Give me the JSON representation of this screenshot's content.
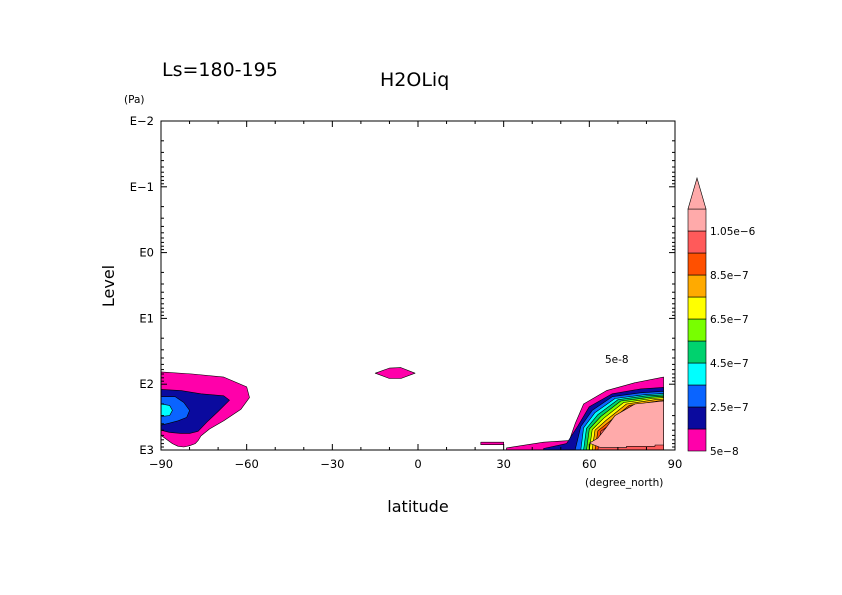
{
  "chart_data": {
    "type": "contour",
    "title": "H2OLiq",
    "subtitle": "Ls=180-195",
    "xlabel": "latitude",
    "xunit": "(degree_north)",
    "ylabel": "Level",
    "yunit": "(Pa)",
    "xlim": [
      -90,
      90
    ],
    "ylim": [
      1000,
      0.01
    ],
    "yscale": "log",
    "x_ticks": [
      -90,
      -60,
      -30,
      0,
      30,
      60,
      90
    ],
    "x_tick_labels": [
      "−90",
      "−60",
      "−30",
      "0",
      "30",
      "60",
      "90"
    ],
    "y_ticks": [
      0.01,
      0.1,
      1,
      10,
      100,
      1000
    ],
    "y_tick_labels": [
      "E−2",
      "E−1",
      "E0",
      "E1",
      "E2",
      "E3"
    ],
    "contour_label": "5e-8",
    "colorbar": {
      "levels": [
        5e-08,
        1.5e-07,
        2.5e-07,
        3.5e-07,
        4.5e-07,
        5.5e-07,
        6.5e-07,
        7.5e-07,
        8.5e-07,
        9.5e-07,
        1.05e-06
      ],
      "labels": [
        "5e−8",
        "2.5e−7",
        "4.5e−7",
        "6.5e−7",
        "8.5e−7",
        "1.05e−6"
      ],
      "colors": [
        "#ff00aa",
        "#0a0a9e",
        "#0a64ff",
        "#00ffff",
        "#00d26e",
        "#78ff00",
        "#ffff00",
        "#ffaa00",
        "#ff5000",
        "#ff5a5a",
        "#ffaaaa"
      ],
      "extend": "max"
    },
    "regions": [
      {
        "level_index": 0,
        "color_index": 0,
        "lat": [
          -90,
          -79,
          -68,
          -60,
          -59,
          -62,
          -68,
          -73,
          -76,
          -77,
          -78,
          -80,
          -82,
          -84,
          -86,
          -90
        ],
        "pressure": [
          65,
          70,
          78,
          110,
          160,
          240,
          360,
          480,
          610,
          720,
          800,
          860,
          900,
          880,
          800,
          600
        ]
      },
      {
        "level_index": 1,
        "color_index": 1,
        "lat": [
          -90,
          -83,
          -76,
          -68,
          -66,
          -70,
          -74,
          -77,
          -80,
          -83,
          -87,
          -90
        ],
        "pressure": [
          120,
          125,
          140,
          150,
          175,
          260,
          380,
          520,
          560,
          560,
          540,
          500
        ]
      },
      {
        "level_index": 2,
        "color_index": 2,
        "lat": [
          -90,
          -85,
          -82,
          -80,
          -81,
          -84,
          -87,
          -90
        ],
        "pressure": [
          155,
          155,
          190,
          250,
          320,
          360,
          390,
          420
        ]
      },
      {
        "level_index": 3,
        "color_index": 3,
        "lat": [
          -90,
          -87,
          -86,
          -87,
          -90
        ],
        "pressure": [
          200,
          210,
          250,
          300,
          310
        ]
      },
      {
        "level_index": 0,
        "color_index": 0,
        "lat": [
          -15,
          -10,
          -6,
          -1,
          -6,
          -10,
          -15
        ],
        "pressure": [
          68,
          57,
          56,
          68,
          82,
          82,
          68
        ]
      },
      {
        "level_index": 0,
        "color_index": 0,
        "lat": [
          22,
          30,
          30,
          22
        ],
        "pressure": [
          760,
          760,
          830,
          830
        ]
      },
      {
        "level_index": 0,
        "color_index": 0,
        "lat": [
          31,
          44,
          53,
          55,
          58,
          66,
          76,
          86,
          86,
          74,
          68,
          62,
          60,
          58,
          57,
          51,
          40,
          31
        ],
        "pressure": [
          930,
          760,
          720,
          400,
          200,
          125,
          95,
          78,
          1000,
          1000,
          1000,
          1000,
          1000,
          1000,
          1000,
          1000,
          1000,
          1000
        ]
      },
      {
        "level_index": 1,
        "color_index": 1,
        "lat": [
          44,
          52,
          56,
          60,
          68,
          78,
          86,
          86,
          70,
          54,
          44
        ],
        "pressure": [
          950,
          800,
          430,
          220,
          140,
          118,
          112,
          1000,
          1000,
          1000,
          1000
        ]
      },
      {
        "level_index": 2,
        "color_index": 2,
        "lat": [
          55,
          57,
          61,
          68,
          78,
          86,
          86,
          62,
          55
        ],
        "pressure": [
          1000,
          440,
          250,
          155,
          135,
          128,
          1000,
          1000,
          1000
        ]
      },
      {
        "level_index": 3,
        "color_index": 3,
        "lat": [
          57,
          58,
          62,
          69,
          79,
          86,
          86,
          58,
          57
        ],
        "pressure": [
          1000,
          460,
          270,
          165,
          145,
          138,
          1000,
          1000,
          1000
        ]
      },
      {
        "level_index": 4,
        "color_index": 4,
        "lat": [
          58,
          59,
          63,
          70,
          80,
          86,
          86,
          59,
          58
        ],
        "pressure": [
          1000,
          470,
          290,
          172,
          150,
          145,
          1000,
          1000,
          1000
        ]
      },
      {
        "level_index": 5,
        "color_index": 5,
        "lat": [
          59,
          60,
          64,
          71,
          81,
          86,
          86,
          60,
          59
        ],
        "pressure": [
          1000,
          480,
          310,
          180,
          158,
          152,
          1000,
          1000,
          1000
        ]
      },
      {
        "level_index": 6,
        "color_index": 6,
        "lat": [
          60,
          61,
          65,
          72,
          82,
          86,
          86,
          61,
          60
        ],
        "pressure": [
          1000,
          490,
          330,
          190,
          165,
          160,
          1000,
          1000,
          1000
        ]
      },
      {
        "level_index": 7,
        "color_index": 7,
        "lat": [
          61,
          62,
          66,
          73,
          83,
          86,
          86,
          62,
          61
        ],
        "pressure": [
          1000,
          500,
          350,
          200,
          172,
          168,
          1000,
          1000,
          1000
        ]
      },
      {
        "level_index": 8,
        "color_index": 8,
        "lat": [
          62,
          63,
          67,
          74,
          84,
          86,
          86,
          63,
          62
        ],
        "pressure": [
          1000,
          510,
          370,
          210,
          180,
          176,
          1000,
          1000,
          1000
        ]
      },
      {
        "level_index": 9,
        "color_index": 9,
        "lat": [
          63,
          64,
          68,
          75,
          85,
          86,
          86,
          64,
          63
        ],
        "pressure": [
          1000,
          520,
          390,
          220,
          190,
          186,
          1000,
          1000,
          1000
        ]
      },
      {
        "level_index": 10,
        "color_index": 10,
        "lat": [
          60,
          63,
          66,
          69,
          76,
          86,
          86,
          83,
          83,
          73,
          73,
          64,
          60
        ],
        "pressure": [
          785,
          660,
          450,
          300,
          200,
          180,
          840,
          840,
          880,
          880,
          920,
          920,
          785
        ]
      }
    ]
  }
}
